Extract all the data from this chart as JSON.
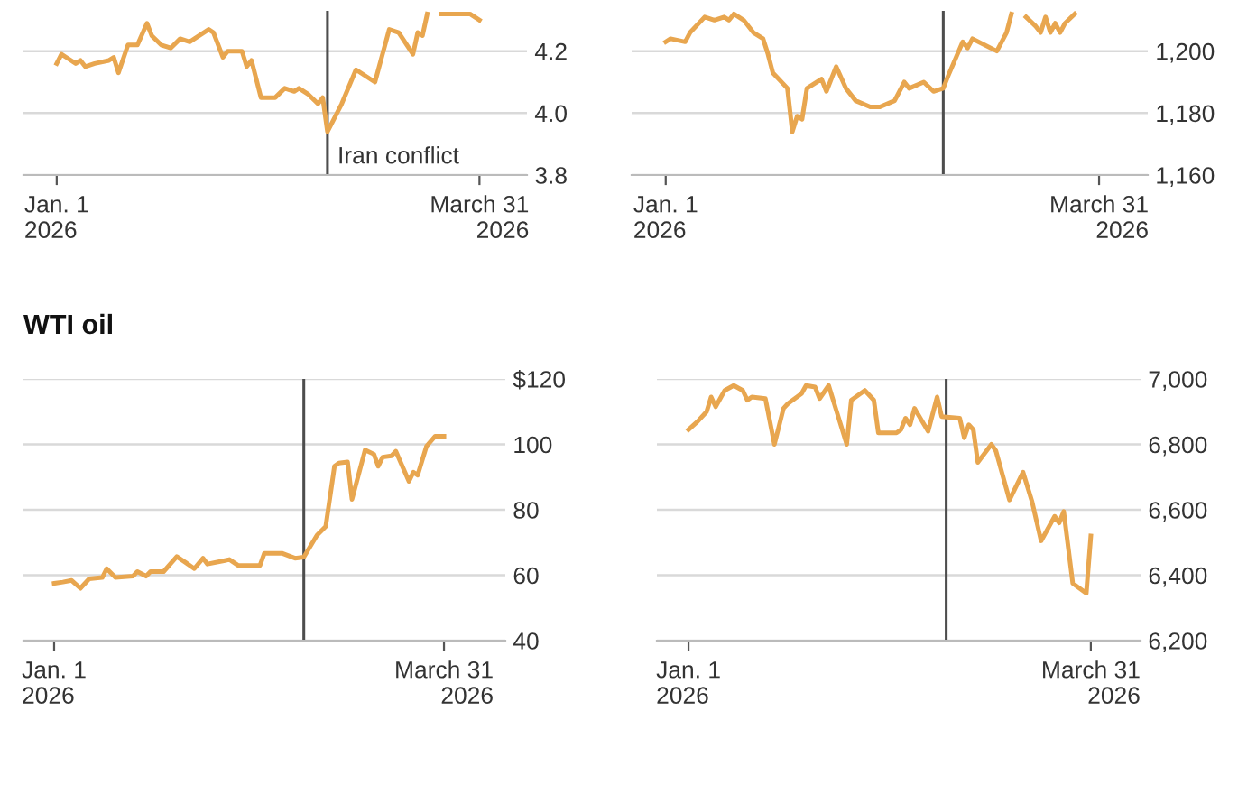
{
  "chart_data": [
    {
      "type": "line",
      "x": [
        "2026-01-01",
        "2026-01-02",
        "2026-01-03",
        "2026-01-05",
        "2026-01-06",
        "2026-01-07",
        "2026-01-09",
        "2026-01-12",
        "2026-01-13",
        "2026-01-14",
        "2026-01-16",
        "2026-01-18",
        "2026-01-20",
        "2026-01-21",
        "2026-01-23",
        "2026-01-25",
        "2026-01-27",
        "2026-01-29",
        "2026-01-30",
        "2026-02-02",
        "2026-02-03",
        "2026-02-05",
        "2026-02-06",
        "2026-02-09",
        "2026-02-10",
        "2026-02-11",
        "2026-02-13",
        "2026-02-16",
        "2026-02-18",
        "2026-02-20",
        "2026-02-21",
        "2026-02-23",
        "2026-02-25",
        "2026-02-26",
        "2026-02-27",
        "2026-03-02",
        "2026-03-05",
        "2026-03-09",
        "2026-03-12",
        "2026-03-14",
        "2026-03-17",
        "2026-03-18",
        "2026-03-19",
        "2026-03-20",
        "2026-03-21",
        "2026-03-23",
        "2026-03-24",
        "2026-03-27",
        "2026-03-29",
        "2026-03-31"
      ],
      "series": [
        {
          "color": "#e8a64f",
          "values": [
            4.16,
            4.19,
            4.18,
            4.16,
            4.17,
            4.15,
            4.16,
            4.17,
            4.18,
            4.13,
            4.22,
            4.22,
            4.29,
            4.25,
            4.22,
            4.21,
            4.24,
            4.23,
            4.24,
            4.27,
            4.26,
            4.18,
            4.2,
            4.2,
            4.15,
            4.17,
            4.05,
            4.05,
            4.08,
            4.07,
            4.08,
            4.06,
            4.03,
            4.05,
            3.94,
            4.03,
            4.14,
            4.1,
            4.27,
            4.26,
            4.19,
            4.26,
            4.25,
            4.32,
            null,
            4.32,
            4.32,
            4.32,
            4.32,
            4.3
          ]
        }
      ],
      "xlim": [
        "2025-12-25",
        "2026-04-10"
      ],
      "ylim": [
        3.8,
        4.33
      ],
      "xticks": [
        {
          "value": "2026-01-01",
          "label": "Jan. 1\n2026"
        },
        {
          "value": "2026-03-31",
          "label": "March 31\n2026"
        }
      ],
      "yticks": [
        {
          "value": 3.8,
          "label": "3.8"
        },
        {
          "value": 4.0,
          "label": "4.0"
        },
        {
          "value": 4.2,
          "label": "4.2"
        }
      ],
      "grid": "y",
      "ref_lines": [
        {
          "axis": "x",
          "value": "2026-02-27",
          "label": "Iran conflict",
          "color": "#4d4d4d"
        }
      ]
    },
    {
      "type": "line",
      "x": [
        "2026-01-01",
        "2026-01-02",
        "2026-01-05",
        "2026-01-06",
        "2026-01-09",
        "2026-01-11",
        "2026-01-13",
        "2026-01-14",
        "2026-01-15",
        "2026-01-17",
        "2026-01-19",
        "2026-01-21",
        "2026-01-22",
        "2026-01-23",
        "2026-01-26",
        "2026-01-27",
        "2026-01-28",
        "2026-01-29",
        "2026-01-30",
        "2026-02-02",
        "2026-02-03",
        "2026-02-05",
        "2026-02-07",
        "2026-02-09",
        "2026-02-12",
        "2026-02-14",
        "2026-02-17",
        "2026-02-19",
        "2026-02-20",
        "2026-02-23",
        "2026-02-25",
        "2026-02-27",
        "2026-02-28",
        "2026-03-03",
        "2026-03-04",
        "2026-03-05",
        "2026-03-10",
        "2026-03-12",
        "2026-03-13",
        "2026-03-14",
        "2026-03-16",
        "2026-03-18",
        "2026-03-19",
        "2026-03-20",
        "2026-03-21",
        "2026-03-22",
        "2026-03-23",
        "2026-03-24",
        "2026-03-26"
      ],
      "series": [
        {
          "color": "#e8a64f",
          "values": [
            1203,
            1204,
            1203,
            1206,
            1211,
            1210,
            1211,
            1210,
            1212,
            1210,
            1206,
            1204,
            1199,
            1193,
            1188,
            1174,
            1179,
            1178,
            1188,
            1191,
            1187,
            1195,
            1188,
            1184,
            1182,
            1182,
            1184,
            1190,
            1188,
            1190,
            1187,
            1188,
            1192,
            1203,
            1201,
            1204,
            1200,
            1206,
            1212,
            null,
            1211,
            1208,
            1206,
            1211,
            1206,
            1209,
            1206,
            1209,
            1212
          ]
        }
      ],
      "xlim": [
        "2025-12-25",
        "2026-04-10"
      ],
      "ylim": [
        1160,
        1213
      ],
      "xticks": [
        {
          "value": "2026-01-01",
          "label": "Jan. 1\n2026"
        },
        {
          "value": "2026-03-31",
          "label": "March 31\n2026"
        }
      ],
      "yticks": [
        {
          "value": 1160,
          "label": "1,160"
        },
        {
          "value": 1180,
          "label": "1,180"
        },
        {
          "value": 1200,
          "label": "1,200"
        }
      ],
      "grid": "y",
      "ref_lines": [
        {
          "axis": "x",
          "value": "2026-02-27",
          "color": "#4d4d4d"
        }
      ]
    },
    {
      "type": "line",
      "title": "WTI oil",
      "x": [
        "2026-01-01",
        "2026-01-03",
        "2026-01-05",
        "2026-01-07",
        "2026-01-09",
        "2026-01-12",
        "2026-01-13",
        "2026-01-15",
        "2026-01-19",
        "2026-01-20",
        "2026-01-22",
        "2026-01-23",
        "2026-01-26",
        "2026-01-29",
        "2026-01-31",
        "2026-02-02",
        "2026-02-04",
        "2026-02-05",
        "2026-02-09",
        "2026-02-10",
        "2026-02-12",
        "2026-02-17",
        "2026-02-18",
        "2026-02-22",
        "2026-02-25",
        "2026-02-27",
        "2026-03-02",
        "2026-03-04",
        "2026-03-06",
        "2026-03-07",
        "2026-03-09",
        "2026-03-10",
        "2026-03-13",
        "2026-03-15",
        "2026-03-16",
        "2026-03-17",
        "2026-03-19",
        "2026-03-20",
        "2026-03-23",
        "2026-03-24",
        "2026-03-25",
        "2026-03-27",
        "2026-03-29",
        "2026-03-31"
      ],
      "series": [
        {
          "color": "#e8a64f",
          "values": [
            57.5,
            57.9,
            58.4,
            56,
            58.9,
            59.3,
            62,
            59.3,
            59.7,
            61.1,
            59.7,
            61.1,
            61.1,
            65.7,
            63.9,
            62,
            65.2,
            63.4,
            64.5,
            64.8,
            63,
            63,
            66.7,
            66.7,
            65.2,
            65.5,
            72.2,
            74.9,
            93.3,
            94.3,
            94.6,
            83.2,
            98.3,
            97,
            93.3,
            96.1,
            96.5,
            97.9,
            88.7,
            91.5,
            90.6,
            99.4,
            102.5,
            102.5
          ]
        }
      ],
      "xlim": [
        "2025-12-25",
        "2026-04-14"
      ],
      "ylim": [
        40,
        120
      ],
      "xticks": [
        {
          "value": "2026-01-01",
          "label": "Jan. 1\n2026"
        },
        {
          "value": "2026-03-31",
          "label": "March 31\n2026"
        }
      ],
      "yticks": [
        40,
        60,
        80,
        100,
        {
          "value": 120,
          "label": "$120"
        }
      ],
      "grid": "y",
      "ref_lines": [
        {
          "axis": "x",
          "value": "2026-02-27",
          "color": "#4d4d4d"
        }
      ]
    },
    {
      "type": "line",
      "x": [
        "2026-01-01",
        "2026-01-03",
        "2026-01-05",
        "2026-01-06",
        "2026-01-07",
        "2026-01-09",
        "2026-01-11",
        "2026-01-13",
        "2026-01-14",
        "2026-01-15",
        "2026-01-18",
        "2026-01-20",
        "2026-01-22",
        "2026-01-23",
        "2026-01-26",
        "2026-01-27",
        "2026-01-29",
        "2026-01-30",
        "2026-02-01",
        "2026-02-03",
        "2026-02-05",
        "2026-02-06",
        "2026-02-09",
        "2026-02-11",
        "2026-02-12",
        "2026-02-16",
        "2026-02-17",
        "2026-02-18",
        "2026-02-19",
        "2026-02-20",
        "2026-02-23",
        "2026-02-25",
        "2026-02-26",
        "2026-03-02",
        "2026-03-03",
        "2026-03-04",
        "2026-03-05",
        "2026-03-06",
        "2026-03-09",
        "2026-03-10",
        "2026-03-13",
        "2026-03-16",
        "2026-03-18",
        "2026-03-20",
        "2026-03-23",
        "2026-03-24",
        "2026-03-25",
        "2026-03-27",
        "2026-03-30",
        "2026-03-31"
      ],
      "series": [
        {
          "color": "#e8a64f",
          "values": [
            6845,
            6870,
            6900,
            6945,
            6915,
            6965,
            6980,
            6965,
            6935,
            6945,
            6940,
            6800,
            6910,
            6925,
            6955,
            6980,
            6975,
            6940,
            6980,
            6890,
            6800,
            6935,
            6965,
            6935,
            6835,
            6835,
            6845,
            6880,
            6860,
            6910,
            6840,
            6945,
            6885,
            6880,
            6820,
            6860,
            6845,
            6745,
            6800,
            6780,
            6630,
            6715,
            6625,
            6505,
            6580,
            6560,
            6595,
            6375,
            6345,
            6520
          ]
        }
      ],
      "xlim": [
        "2025-12-25",
        "2026-04-11"
      ],
      "ylim": [
        6200,
        7000
      ],
      "xticks": [
        {
          "value": "2026-01-01",
          "label": "Jan. 1\n2026"
        },
        {
          "value": "2026-03-31",
          "label": "March 31\n2026"
        }
      ],
      "yticks": [
        {
          "value": 6200,
          "label": "6,200"
        },
        {
          "value": 6400,
          "label": "6,400"
        },
        {
          "value": 6600,
          "label": "6,600"
        },
        {
          "value": 6800,
          "label": "6,800"
        },
        {
          "value": 7000,
          "label": "7,000"
        }
      ],
      "grid": "y",
      "ref_lines": [
        {
          "axis": "x",
          "value": "2026-02-27",
          "color": "#4d4d4d"
        }
      ]
    }
  ]
}
